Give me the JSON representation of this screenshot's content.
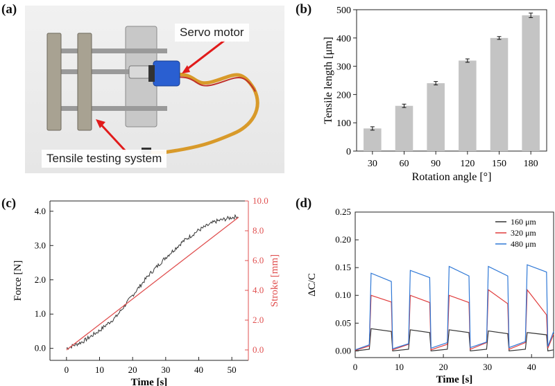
{
  "panels": {
    "a": {
      "label": "(a)",
      "servo_label": "Servo motor",
      "system_label": "Tensile testing system"
    },
    "b": {
      "label": "(b)"
    },
    "c": {
      "label": "(c)"
    },
    "d": {
      "label": "(d)"
    }
  },
  "colors": {
    "bar": "#c4c4c4",
    "force": "#333333",
    "stroke": "#e05050",
    "s160": "#333333",
    "s320": "#e03a3a",
    "s480": "#2f78d6",
    "arrow": "#e11b1b"
  },
  "chart_data": [
    {
      "id": "b",
      "type": "bar",
      "xlabel": "Rotation angle [°]",
      "ylabel": "Tensile length [μm]",
      "categories": [
        "30",
        "60",
        "90",
        "120",
        "150",
        "180"
      ],
      "values": [
        80,
        160,
        240,
        320,
        400,
        480
      ],
      "errors": [
        6,
        6,
        6,
        6,
        5,
        8
      ],
      "ylim": [
        0,
        500
      ],
      "yticks": [
        0,
        100,
        200,
        300,
        400,
        500
      ]
    },
    {
      "id": "c",
      "type": "line",
      "xlabel": "Time [s]",
      "ylabel": "Force [N]",
      "ylabel_right": "Stroke [mm]",
      "xlim": [
        -5,
        55
      ],
      "xticks": [
        0,
        10,
        20,
        30,
        40,
        50
      ],
      "ylim": [
        -0.35,
        4.3
      ],
      "yticks": [
        0,
        1,
        2,
        3,
        4
      ],
      "ytick_labels": [
        "0.0",
        "1.0",
        "2.0",
        "3.0",
        "4.0"
      ],
      "y2lim": [
        -0.7,
        10
      ],
      "y2ticks": [
        0,
        2,
        4,
        6,
        8,
        10
      ],
      "y2tick_labels": [
        "0.0",
        "2.0",
        "4.0",
        "6.0",
        "8.0",
        "10.0"
      ],
      "series": [
        {
          "axis": "left",
          "points": [
            [
              0,
              0
            ],
            [
              5,
              0.2
            ],
            [
              10,
              0.52
            ],
            [
              15,
              0.92
            ],
            [
              20,
              1.55
            ],
            [
              25,
              2.15
            ],
            [
              30,
              2.65
            ],
            [
              35,
              3.1
            ],
            [
              40,
              3.45
            ],
            [
              45,
              3.7
            ],
            [
              50,
              3.82
            ],
            [
              52,
              3.85
            ]
          ]
        },
        {
          "axis": "right",
          "points": [
            [
              0,
              0
            ],
            [
              52,
              8.9
            ]
          ]
        }
      ]
    },
    {
      "id": "d",
      "type": "line",
      "xlabel": "Time [s]",
      "ylabel": "ΔC/C",
      "xlim": [
        0,
        45
      ],
      "xticks": [
        0,
        10,
        20,
        30,
        40
      ],
      "ylim": [
        -0.012,
        0.25
      ],
      "yticks": [
        0,
        0.05,
        0.1,
        0.15,
        0.2,
        0.25
      ],
      "ytick_labels": [
        "0.00",
        "0.05",
        "0.10",
        "0.15",
        "0.20",
        "0.25"
      ],
      "legend": "top-right",
      "series": [
        {
          "name": "160 μm",
          "color_key": "s160",
          "points": [
            [
              0,
              0
            ],
            [
              3.2,
              0.003
            ],
            [
              3.6,
              0.04
            ],
            [
              8.2,
              0.035
            ],
            [
              8.5,
              0
            ],
            [
              12.1,
              0.003
            ],
            [
              12.5,
              0.038
            ],
            [
              16.9,
              0.033
            ],
            [
              17.2,
              0
            ],
            [
              20.9,
              0.003
            ],
            [
              21.3,
              0.038
            ],
            [
              25.8,
              0.033
            ],
            [
              26.1,
              0
            ],
            [
              29.8,
              0.003
            ],
            [
              30.2,
              0.036
            ],
            [
              34.6,
              0.031
            ],
            [
              34.9,
              0
            ],
            [
              38.6,
              0.003
            ],
            [
              39,
              0.033
            ],
            [
              43.4,
              0.029
            ],
            [
              43.7,
              0
            ],
            [
              45,
              0.002
            ]
          ]
        },
        {
          "name": "320 μm",
          "color_key": "s320",
          "points": [
            [
              0,
              0.001
            ],
            [
              3.2,
              0.009
            ],
            [
              3.6,
              0.1
            ],
            [
              8.2,
              0.088
            ],
            [
              8.5,
              0.002
            ],
            [
              12.1,
              0.012
            ],
            [
              12.5,
              0.1
            ],
            [
              16.9,
              0.087
            ],
            [
              17.2,
              0.002
            ],
            [
              20.9,
              0.012
            ],
            [
              21.3,
              0.1
            ],
            [
              25.8,
              0.087
            ],
            [
              26.1,
              0.003
            ],
            [
              29.8,
              0.015
            ],
            [
              30.2,
              0.11
            ],
            [
              34.6,
              0.085
            ],
            [
              34.9,
              0.003
            ],
            [
              38.6,
              0.015
            ],
            [
              39,
              0.11
            ],
            [
              43.4,
              0.065
            ],
            [
              43.7,
              0.005
            ],
            [
              45,
              0.03
            ]
          ]
        },
        {
          "name": "480 μm",
          "color_key": "s480",
          "points": [
            [
              0,
              0.002
            ],
            [
              3.2,
              0.011
            ],
            [
              3.6,
              0.14
            ],
            [
              8.2,
              0.125
            ],
            [
              8.5,
              0.004
            ],
            [
              12.1,
              0.013
            ],
            [
              12.5,
              0.145
            ],
            [
              16.9,
              0.132
            ],
            [
              17.2,
              0.005
            ],
            [
              20.9,
              0.015
            ],
            [
              21.3,
              0.152
            ],
            [
              25.8,
              0.135
            ],
            [
              26.1,
              0.006
            ],
            [
              29.8,
              0.016
            ],
            [
              30.2,
              0.152
            ],
            [
              34.6,
              0.135
            ],
            [
              34.9,
              0.006
            ],
            [
              38.6,
              0.017
            ],
            [
              39,
              0.155
            ],
            [
              43.4,
              0.142
            ],
            [
              43.7,
              0.008
            ],
            [
              45,
              0.035
            ]
          ]
        }
      ]
    }
  ]
}
